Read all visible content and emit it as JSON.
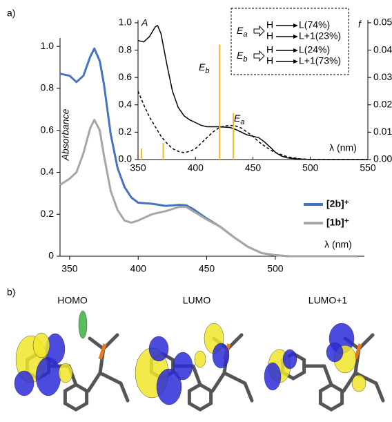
{
  "panel_labels": [
    "a)",
    "b)"
  ],
  "orbitals": [
    {
      "label": "HOMO"
    },
    {
      "label": "LUMO"
    },
    {
      "label": "LUMO+1"
    }
  ],
  "chart_data": [
    {
      "type": "line",
      "xlabel": "λ (nm)",
      "ylabel": "Absorbance",
      "xlim": [
        343,
        565
      ],
      "xticks": [
        350,
        400,
        450,
        500
      ],
      "ylim": [
        0,
        1.04
      ],
      "yticks": [
        0,
        0.2,
        0.4,
        0.6,
        0.8,
        {
          "value": 1,
          "label": "1.0"
        }
      ],
      "legend": "right",
      "series": [
        {
          "name": "[2b]⁺",
          "color": "#4472c4",
          "x": [
            343,
            350,
            355,
            360,
            365,
            368,
            372,
            375,
            380,
            385,
            390,
            395,
            400,
            410,
            420,
            430,
            435,
            440,
            450,
            460,
            470,
            480,
            490,
            500,
            510,
            520,
            530,
            545,
            560
          ],
          "values": [
            0.87,
            0.86,
            0.83,
            0.86,
            0.95,
            0.99,
            0.93,
            0.82,
            0.58,
            0.42,
            0.33,
            0.28,
            0.255,
            0.25,
            0.24,
            0.245,
            0.243,
            0.225,
            0.18,
            0.14,
            0.09,
            0.045,
            0.015,
            0.005,
            0,
            0,
            0,
            0,
            0
          ]
        },
        {
          "name": "[1b]⁺",
          "color": "#a6a6a6",
          "x": [
            343,
            350,
            355,
            360,
            365,
            368,
            372,
            375,
            380,
            385,
            390,
            395,
            400,
            410,
            420,
            430,
            435,
            440,
            450,
            460,
            470,
            480,
            490,
            500,
            510,
            520,
            530,
            545,
            560
          ],
          "values": [
            0.34,
            0.37,
            0.4,
            0.49,
            0.61,
            0.65,
            0.6,
            0.48,
            0.31,
            0.22,
            0.17,
            0.16,
            0.17,
            0.2,
            0.215,
            0.235,
            0.235,
            0.215,
            0.175,
            0.14,
            0.09,
            0.045,
            0.015,
            0.005,
            0,
            0,
            0,
            0,
            0
          ]
        }
      ]
    },
    {
      "type": "line",
      "xlabel": "λ (nm)",
      "ylabel": "A",
      "y2label": "f",
      "xlim": [
        350,
        550
      ],
      "xticks": [
        350,
        400,
        450,
        500,
        550
      ],
      "ylim": [
        0,
        1.02
      ],
      "yticks": [
        {
          "value": 0,
          "label": "0.0"
        },
        0.2,
        0.4,
        0.6,
        0.8,
        {
          "value": 1,
          "label": "1.0"
        }
      ],
      "y2lim": [
        0,
        0.051
      ],
      "y2ticks": [
        {
          "value": 0,
          "label": "0.00"
        },
        {
          "value": 0.01,
          "label": "0.01"
        },
        {
          "value": 0.02,
          "label": "0.02"
        },
        {
          "value": 0.03,
          "label": "0.03"
        },
        {
          "value": 0.04,
          "label": "0.04"
        },
        {
          "value": 0.05,
          "label": "0.05"
        }
      ],
      "series": [
        {
          "color": "#000000",
          "x": [
            350,
            355,
            360,
            365,
            367,
            370,
            375,
            380,
            385,
            390,
            395,
            400,
            405,
            410,
            420,
            430,
            435,
            440,
            445,
            450,
            455,
            460,
            465,
            470,
            475,
            480,
            490,
            500,
            520,
            550
          ],
          "values": [
            0.87,
            0.86,
            0.9,
            0.97,
            0.98,
            0.92,
            0.7,
            0.5,
            0.38,
            0.32,
            0.29,
            0.27,
            0.25,
            0.24,
            0.24,
            0.235,
            0.22,
            0.2,
            0.18,
            0.17,
            0.16,
            0.13,
            0.09,
            0.05,
            0.025,
            0.012,
            0.004,
            0,
            0,
            0
          ]
        },
        {
          "color": "#000000",
          "dash": true,
          "x": [
            350,
            355,
            360,
            365,
            370,
            375,
            380,
            385,
            390,
            395,
            400,
            405,
            410,
            415,
            420,
            425,
            430,
            435,
            440,
            445,
            450,
            455,
            460,
            465,
            470,
            480,
            490,
            500,
            520,
            550
          ],
          "values": [
            0.5,
            0.4,
            0.31,
            0.24,
            0.17,
            0.12,
            0.08,
            0.06,
            0.05,
            0.06,
            0.08,
            0.12,
            0.16,
            0.2,
            0.23,
            0.245,
            0.25,
            0.245,
            0.23,
            0.2,
            0.17,
            0.13,
            0.1,
            0.07,
            0.05,
            0.02,
            0.006,
            0.001,
            0,
            0
          ]
        },
        {
          "color": "#f5b921",
          "kind": "stick",
          "axis": "y2",
          "x": [
            353,
            372,
            421,
            433
          ],
          "values": [
            0.004,
            0.006,
            0.042,
            0.017
          ]
        }
      ],
      "annotations": [
        {
          "text": "E",
          "sub": "b"
        },
        {
          "text": "E",
          "sub": "a"
        }
      ],
      "transitions": [
        {
          "state": {
            "text": "E",
            "sub": "a"
          },
          "rows": [
            {
              "from": "H",
              "to": "L(74%)"
            },
            {
              "from": "H",
              "to": "L+1(23%)"
            }
          ]
        },
        {
          "state": {
            "text": "E",
            "sub": "b"
          },
          "rows": [
            {
              "from": "H",
              "to": "L(24%)"
            },
            {
              "from": "H",
              "to": "L+1(73%)"
            }
          ]
        }
      ]
    }
  ]
}
